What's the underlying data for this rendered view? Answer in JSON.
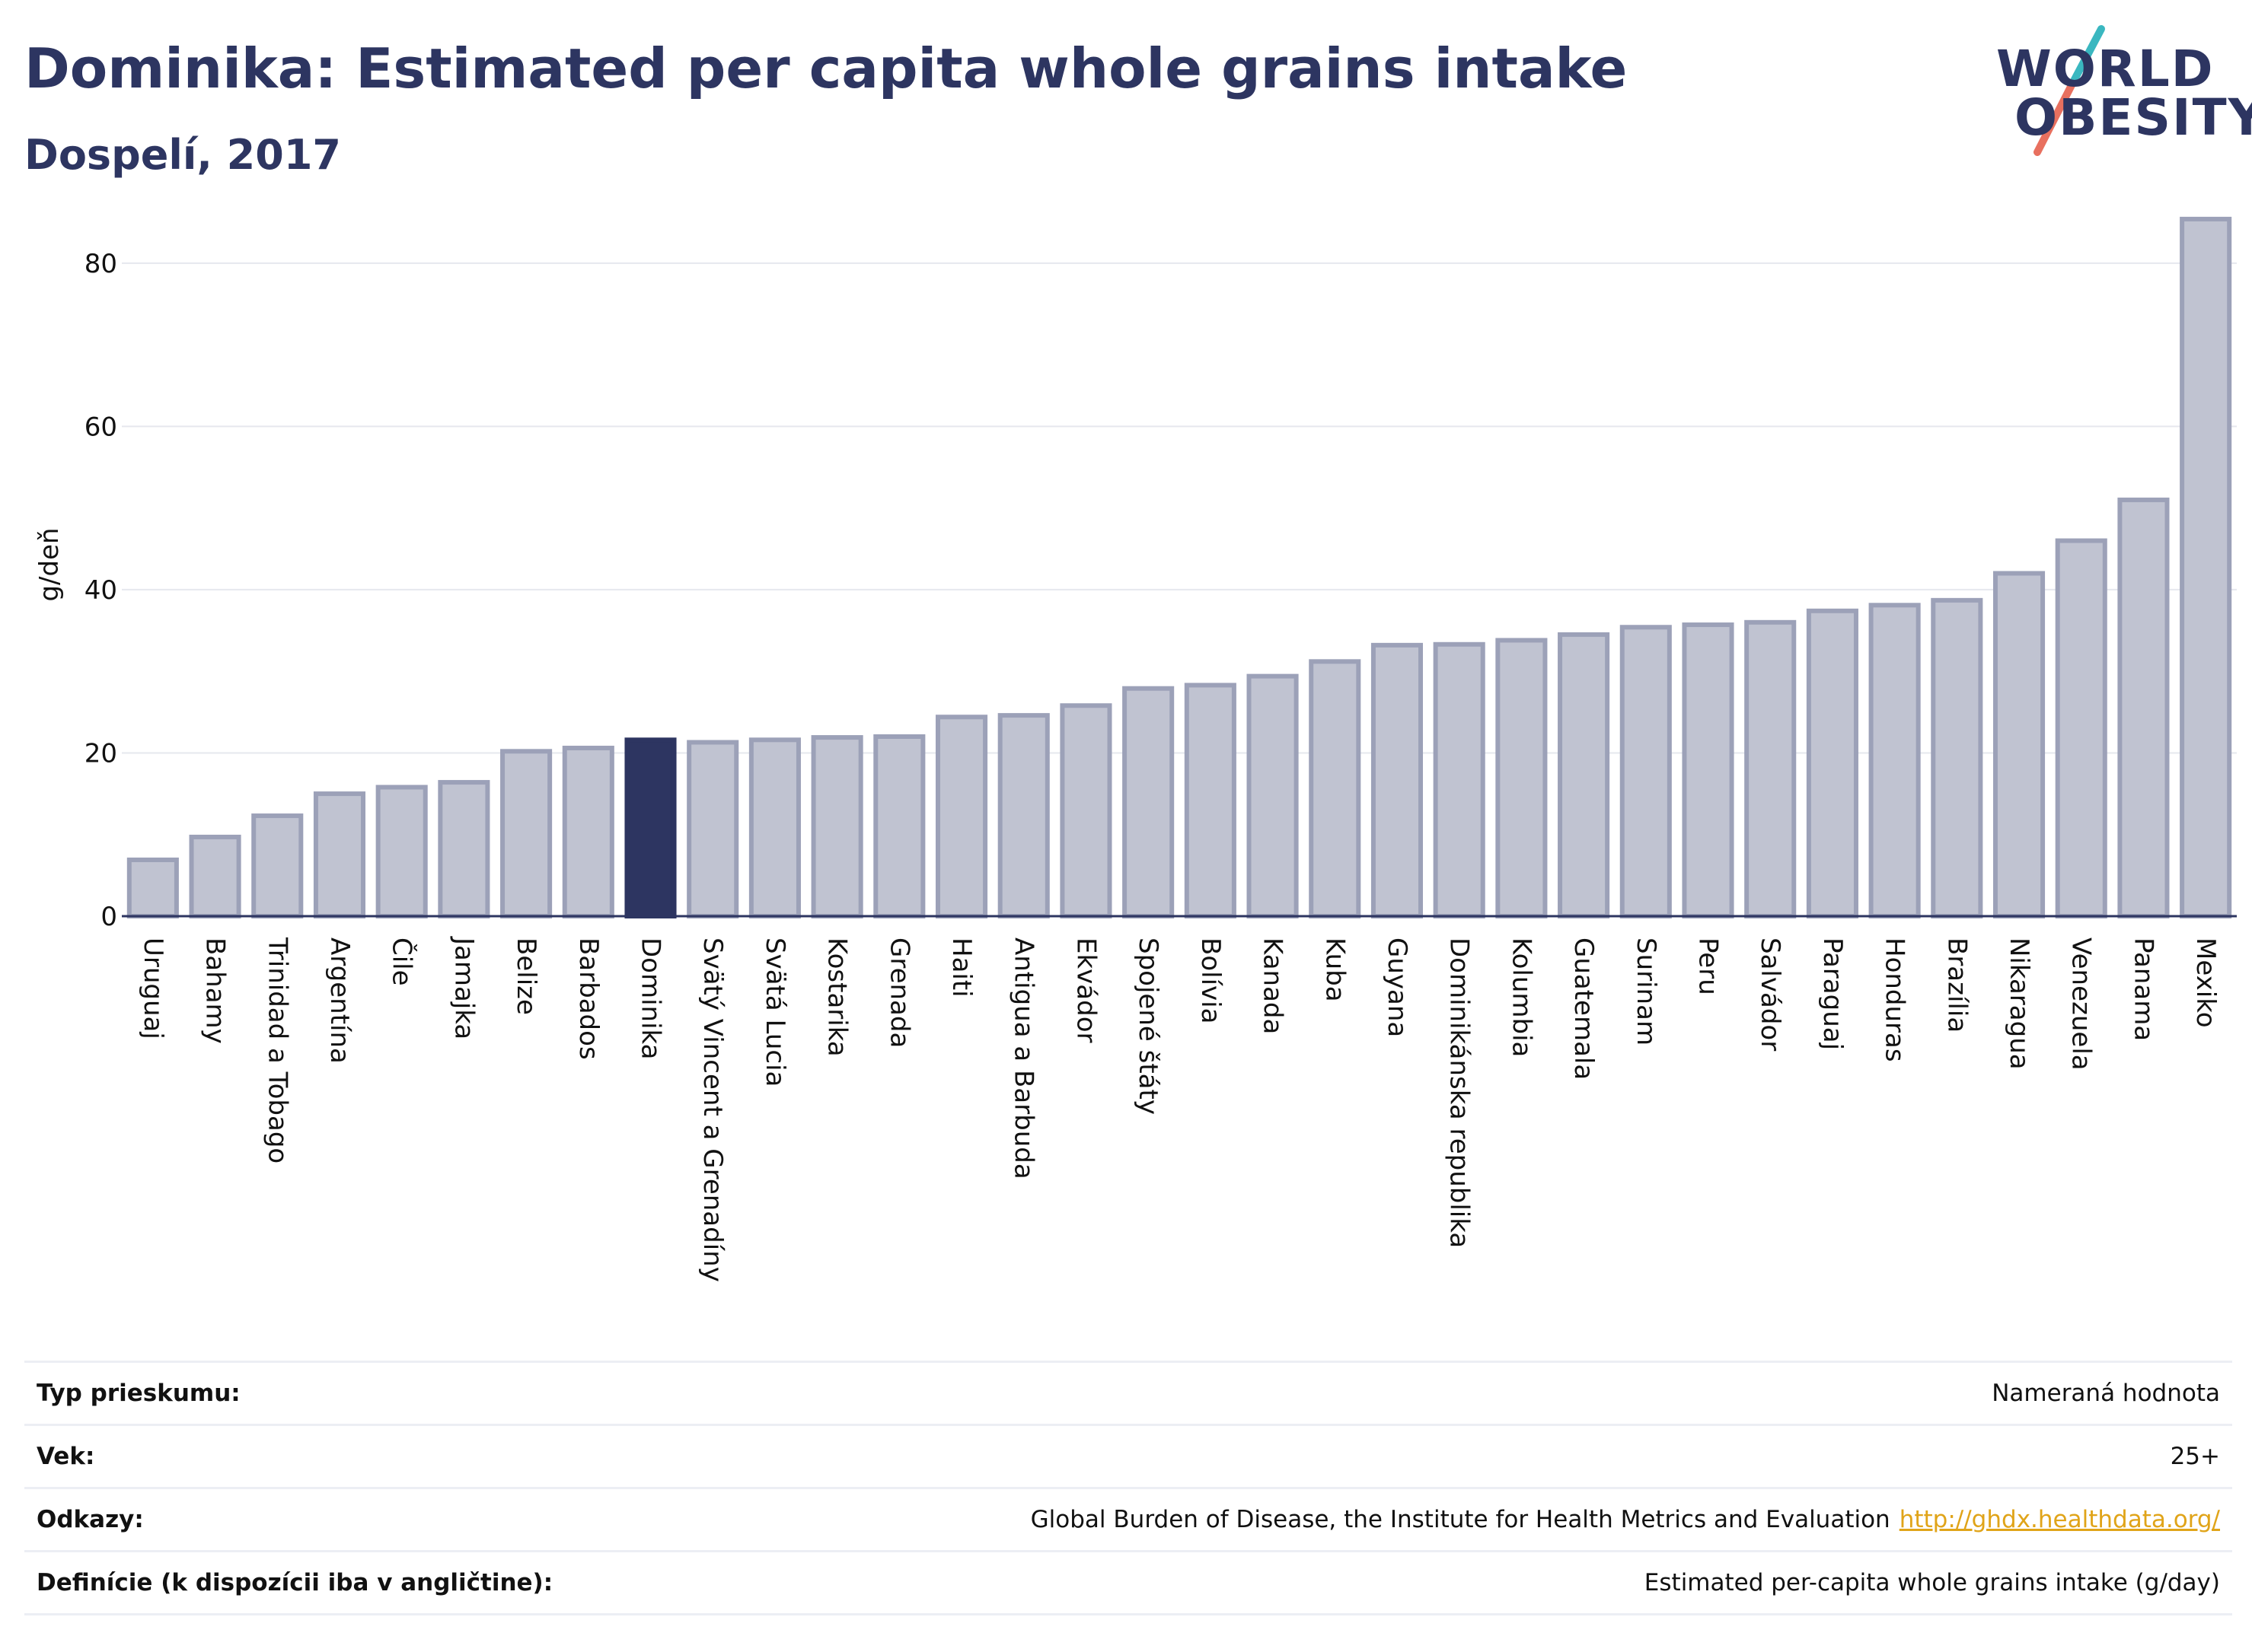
{
  "header": {
    "title": "Dominika: Estimated per capita whole grains intake",
    "subtitle": "Dospelí, 2017"
  },
  "logo": {
    "line1": "WORLD",
    "line2": "OBESITY",
    "colors": {
      "text": "#2d3561",
      "slash_top": "#3ab7c0",
      "slash_bottom": "#e8705f"
    }
  },
  "chart_data": {
    "type": "bar",
    "ylabel": "g/deň",
    "ylim": [
      0,
      88
    ],
    "yticks": [
      0,
      20,
      40,
      60,
      80
    ],
    "grid": true,
    "highlight": "Dominika",
    "colors": {
      "bar": "#c0c3d1",
      "bar_edge": "#9ca1b8",
      "highlight": "#2d3561",
      "grid": "#e6e8ee",
      "axis": "#2d3561"
    },
    "categories": [
      "Uruguaj",
      "Bahamy",
      "Trinidad a Tobago",
      "Argentína",
      "Čile",
      "Jamajka",
      "Belize",
      "Barbados",
      "Dominika",
      "Svätý Vincent a Grenadíny",
      "Svätá Lucia",
      "Kostarika",
      "Grenada",
      "Haiti",
      "Antigua a Barbuda",
      "Ekvádor",
      "Spojené štáty",
      "Bolívia",
      "Kanada",
      "Kuba",
      "Guyana",
      "Dominikánska republika",
      "Kolumbia",
      "Guatemala",
      "Surinam",
      "Peru",
      "Salvádor",
      "Paraguaj",
      "Honduras",
      "Brazília",
      "Nikaragua",
      "Venezuela",
      "Panama",
      "Mexiko"
    ],
    "values": [
      6.9,
      9.7,
      12.3,
      15.0,
      15.8,
      16.4,
      20.2,
      20.6,
      21.6,
      21.3,
      21.6,
      21.9,
      22.0,
      24.4,
      24.6,
      25.8,
      27.9,
      28.3,
      29.4,
      31.2,
      33.2,
      33.3,
      33.8,
      34.5,
      35.4,
      35.7,
      36.0,
      37.4,
      38.1,
      38.7,
      42.0,
      46.0,
      51.0,
      85.4
    ]
  },
  "info": {
    "rows": [
      {
        "label": "Typ prieskumu:",
        "value": "Nameraná hodnota",
        "link": ""
      },
      {
        "label": "Vek:",
        "value": "25+",
        "link": ""
      },
      {
        "label": "Odkazy:",
        "value": "Global Burden of Disease, the Institute for Health Metrics and Evaluation",
        "link": "http://ghdx.healthdata.org/"
      },
      {
        "label": "Definície (k dispozícii iba v angličtine):",
        "value": "Estimated per-capita whole grains intake (g/day)",
        "link": ""
      }
    ]
  }
}
